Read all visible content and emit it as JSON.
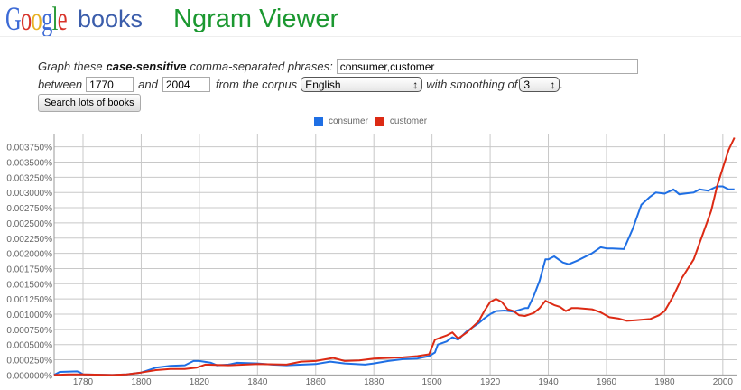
{
  "header": {
    "logo": "Google",
    "books": "books",
    "title": "Ngram Viewer"
  },
  "form": {
    "label_pre": "Graph these",
    "label_bold": "case-sensitive",
    "label_post": "comma-separated phrases:",
    "phrases": "consumer,customer",
    "between": "between",
    "start_year": "1770",
    "and": "and",
    "end_year": "2004",
    "corpus_label": "from the corpus",
    "corpus": "English",
    "smoothing_label": "with smoothing of",
    "smoothing": "3",
    "period": ".",
    "search_button": "Search lots of books"
  },
  "colors": {
    "consumer": "#1f6fe4",
    "customer": "#dc2a14",
    "title": "#1b9830"
  },
  "chart_data": {
    "type": "line",
    "title": "",
    "xlabel": "",
    "ylabel": "",
    "xlim": [
      1770,
      2004
    ],
    "ylim": [
      0,
      0.0039
    ],
    "grid": true,
    "legend": "top-center",
    "x_ticks": [
      1780,
      1800,
      1820,
      1840,
      1860,
      1880,
      1900,
      1920,
      1940,
      1960,
      1980,
      2000
    ],
    "y_ticks": [
      "0.000000%",
      "0.000250%",
      "0.000500%",
      "0.000750%",
      "0.001000%",
      "0.001250%",
      "0.001500%",
      "0.001750%",
      "0.002000%",
      "0.002250%",
      "0.002500%",
      "0.002750%",
      "0.003000%",
      "0.003250%",
      "0.003500%",
      "0.003750%"
    ],
    "y_tick_values": [
      0,
      0.00025,
      0.0005,
      0.00075,
      0.001,
      0.00125,
      0.0015,
      0.00175,
      0.002,
      0.00225,
      0.0025,
      0.00275,
      0.003,
      0.00325,
      0.0035,
      0.00375
    ],
    "series": [
      {
        "name": "consumer",
        "color": "#1f6fe4",
        "points": [
          [
            1770,
            0
          ],
          [
            1772,
            5e-05
          ],
          [
            1778,
            6e-05
          ],
          [
            1779,
            4e-05
          ],
          [
            1780,
            1e-05
          ],
          [
            1790,
            0
          ],
          [
            1795,
            1e-05
          ],
          [
            1800,
            4e-05
          ],
          [
            1805,
            0.00012
          ],
          [
            1810,
            0.00015
          ],
          [
            1815,
            0.00016
          ],
          [
            1818,
            0.00023
          ],
          [
            1820,
            0.00023
          ],
          [
            1824,
            0.0002
          ],
          [
            1826,
            0.00016
          ],
          [
            1830,
            0.00017
          ],
          [
            1833,
            0.0002
          ],
          [
            1840,
            0.00019
          ],
          [
            1845,
            0.00017
          ],
          [
            1850,
            0.00016
          ],
          [
            1860,
            0.00018
          ],
          [
            1865,
            0.00022
          ],
          [
            1870,
            0.00019
          ],
          [
            1877,
            0.00017
          ],
          [
            1880,
            0.00019
          ],
          [
            1885,
            0.00023
          ],
          [
            1890,
            0.00026
          ],
          [
            1895,
            0.00027
          ],
          [
            1899,
            0.00031
          ],
          [
            1901,
            0.00037
          ],
          [
            1902,
            0.0005
          ],
          [
            1905,
            0.00055
          ],
          [
            1907,
            0.00062
          ],
          [
            1909,
            0.00058
          ],
          [
            1912,
            0.00072
          ],
          [
            1916,
            0.00085
          ],
          [
            1918,
            0.00093
          ],
          [
            1920,
            0.001
          ],
          [
            1922,
            0.00105
          ],
          [
            1925,
            0.00106
          ],
          [
            1928,
            0.00104
          ],
          [
            1932,
            0.0011
          ],
          [
            1933,
            0.0011
          ],
          [
            1935,
            0.0013
          ],
          [
            1937,
            0.00155
          ],
          [
            1939,
            0.0019
          ],
          [
            1940,
            0.0019
          ],
          [
            1942,
            0.00195
          ],
          [
            1945,
            0.00185
          ],
          [
            1947,
            0.00182
          ],
          [
            1950,
            0.00188
          ],
          [
            1955,
            0.002
          ],
          [
            1958,
            0.0021
          ],
          [
            1960,
            0.00208
          ],
          [
            1962,
            0.00208
          ],
          [
            1966,
            0.00207
          ],
          [
            1969,
            0.0024
          ],
          [
            1972,
            0.0028
          ],
          [
            1975,
            0.00293
          ],
          [
            1977,
            0.003
          ],
          [
            1980,
            0.00298
          ],
          [
            1983,
            0.00305
          ],
          [
            1985,
            0.00297
          ],
          [
            1990,
            0.003
          ],
          [
            1992,
            0.00305
          ],
          [
            1995,
            0.00303
          ],
          [
            1998,
            0.0031
          ],
          [
            2000,
            0.0031
          ],
          [
            2002,
            0.00305
          ],
          [
            2004,
            0.00305
          ]
        ]
      },
      {
        "name": "customer",
        "color": "#dc2a14",
        "points": [
          [
            1770,
            0
          ],
          [
            1775,
            1e-05
          ],
          [
            1780,
            1e-05
          ],
          [
            1790,
            0
          ],
          [
            1795,
            1e-05
          ],
          [
            1800,
            4e-05
          ],
          [
            1805,
            8e-05
          ],
          [
            1810,
            0.0001
          ],
          [
            1815,
            0.0001
          ],
          [
            1819,
            0.00012
          ],
          [
            1822,
            0.00017
          ],
          [
            1830,
            0.00016
          ],
          [
            1840,
            0.00018
          ],
          [
            1850,
            0.00017
          ],
          [
            1855,
            0.00022
          ],
          [
            1860,
            0.00023
          ],
          [
            1866,
            0.00028
          ],
          [
            1870,
            0.00023
          ],
          [
            1875,
            0.00024
          ],
          [
            1880,
            0.00027
          ],
          [
            1885,
            0.00028
          ],
          [
            1890,
            0.00029
          ],
          [
            1895,
            0.00031
          ],
          [
            1899,
            0.00034
          ],
          [
            1901,
            0.00058
          ],
          [
            1905,
            0.00065
          ],
          [
            1907,
            0.0007
          ],
          [
            1909,
            0.0006
          ],
          [
            1912,
            0.0007
          ],
          [
            1916,
            0.00088
          ],
          [
            1918,
            0.00105
          ],
          [
            1920,
            0.0012
          ],
          [
            1922,
            0.00125
          ],
          [
            1924,
            0.0012
          ],
          [
            1926,
            0.00108
          ],
          [
            1928,
            0.00105
          ],
          [
            1930,
            0.00098
          ],
          [
            1932,
            0.00097
          ],
          [
            1935,
            0.00102
          ],
          [
            1937,
            0.0011
          ],
          [
            1939,
            0.00122
          ],
          [
            1942,
            0.00115
          ],
          [
            1944,
            0.00112
          ],
          [
            1946,
            0.00105
          ],
          [
            1948,
            0.0011
          ],
          [
            1950,
            0.0011
          ],
          [
            1955,
            0.00108
          ],
          [
            1958,
            0.00103
          ],
          [
            1961,
            0.00095
          ],
          [
            1964,
            0.00093
          ],
          [
            1967,
            0.00089
          ],
          [
            1970,
            0.0009
          ],
          [
            1975,
            0.00092
          ],
          [
            1978,
            0.00098
          ],
          [
            1980,
            0.00105
          ],
          [
            1983,
            0.0013
          ],
          [
            1986,
            0.0016
          ],
          [
            1990,
            0.0019
          ],
          [
            1993,
            0.0023
          ],
          [
            1996,
            0.0027
          ],
          [
            1998,
            0.0031
          ],
          [
            2000,
            0.0034
          ],
          [
            2002,
            0.0037
          ],
          [
            2004,
            0.0039
          ]
        ]
      }
    ]
  }
}
